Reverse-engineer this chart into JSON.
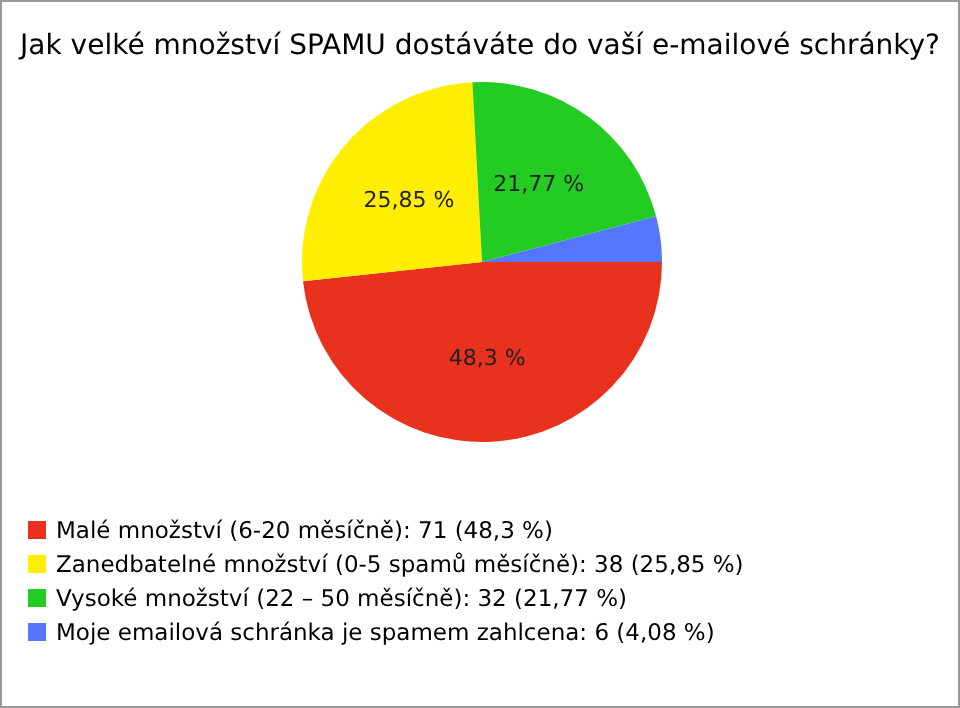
{
  "chart_data": {
    "type": "pie",
    "title": "Jak velké množství SPAMU dostáváte do vaší e-mailové schránky?",
    "categories": [
      "Malé množství (6-20 měsíčně): 71 (48,3 %)",
      "Zanedbatelné množství (0-5 spamů měsíčně): 38 (25,85 %)",
      "Vysoké množství (22 – 50 měsíčně): 32 (21,77 %)",
      "Moje emailová schránka je spamem zahlcena: 6 (4,08 %)"
    ],
    "values": [
      48.3,
      25.85,
      21.77,
      4.08
    ],
    "colors": [
      "#e8321e",
      "#ffee00",
      "#22cc22",
      "#5577ff"
    ],
    "value_labels": [
      "48,3 %",
      "25,85 %",
      "21,77 %",
      null
    ],
    "legend": "bottom left"
  }
}
